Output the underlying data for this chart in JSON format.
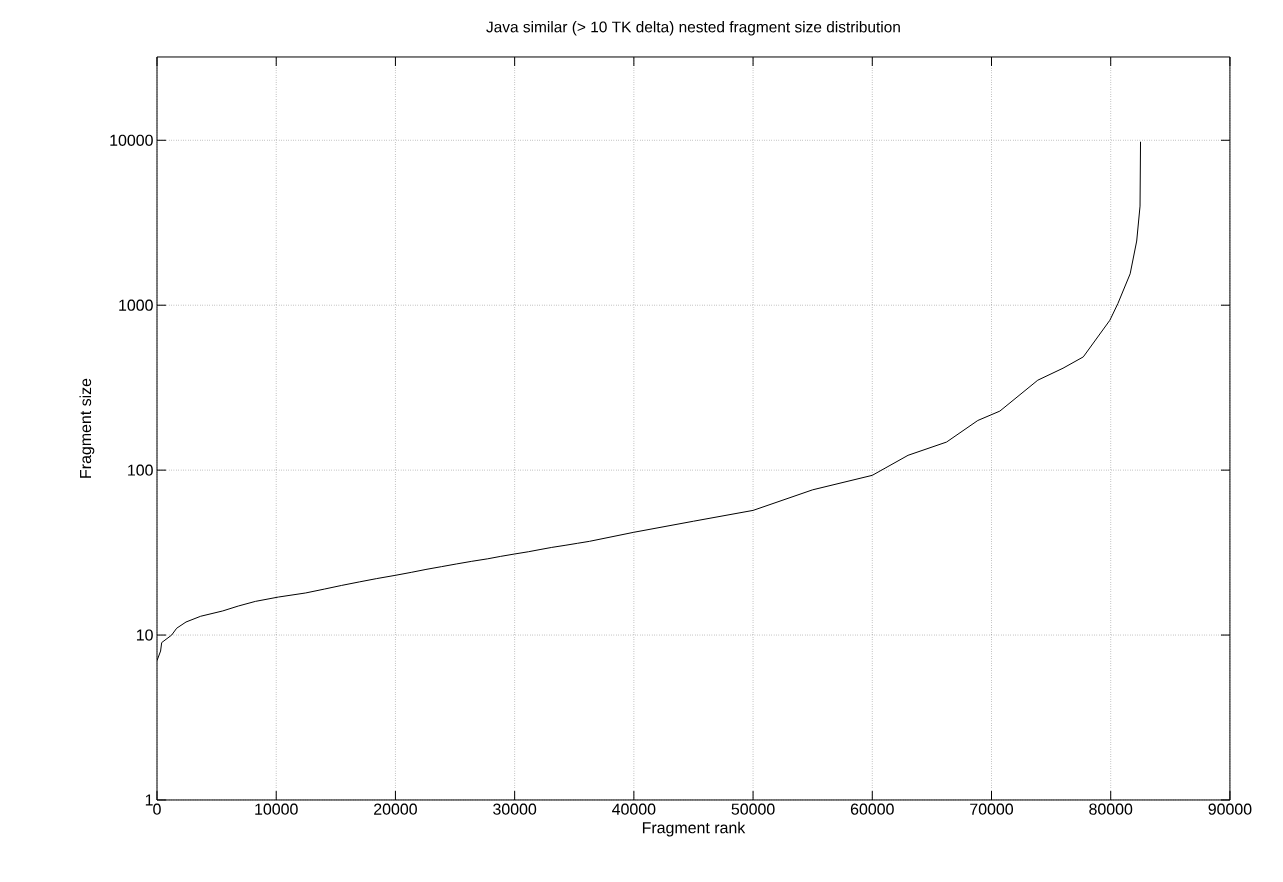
{
  "chart_data": {
    "type": "line",
    "title": "Java similar  (> 10 TK delta) nested fragment size distribution",
    "xlabel": "Fragment rank",
    "ylabel": "Fragment size",
    "x": [
      0,
      300,
      392,
      1230,
      1650,
      2433,
      3663,
      5508,
      6822,
      8249,
      10180,
      12470,
      14040,
      15490,
      16970,
      18430,
      19960,
      21330,
      22560,
      23880,
      25140,
      26400,
      27740,
      28830,
      29980,
      31150,
      32130,
      33110,
      34230,
      35260,
      36270,
      40000,
      45000,
      50000,
      55000,
      60000,
      63000,
      66230,
      68850,
      70700,
      73880,
      76000,
      77700,
      79930,
      80600,
      81630,
      82180,
      82460,
      82500
    ],
    "values": [
      7,
      8,
      9,
      10,
      11,
      12,
      13,
      14,
      15,
      16,
      17,
      18,
      19,
      20,
      21,
      22,
      23,
      24,
      25,
      26,
      27,
      28,
      29,
      30,
      31,
      32,
      33,
      34,
      35,
      36,
      37,
      42,
      49,
      57,
      76,
      93,
      123,
      148,
      200,
      228,
      351,
      415,
      486,
      811,
      1023,
      1550,
      2450,
      3990,
      9800
    ],
    "color": "#000000",
    "log": "y",
    "grid": true,
    "line_style": "solid",
    "xlim": [
      0,
      90000
    ],
    "ylim": [
      1,
      32000
    ],
    "xticks": [
      0,
      10000,
      20000,
      30000,
      40000,
      50000,
      60000,
      70000,
      80000,
      90000
    ],
    "yticks": [
      1,
      10,
      100,
      1000,
      10000
    ]
  }
}
